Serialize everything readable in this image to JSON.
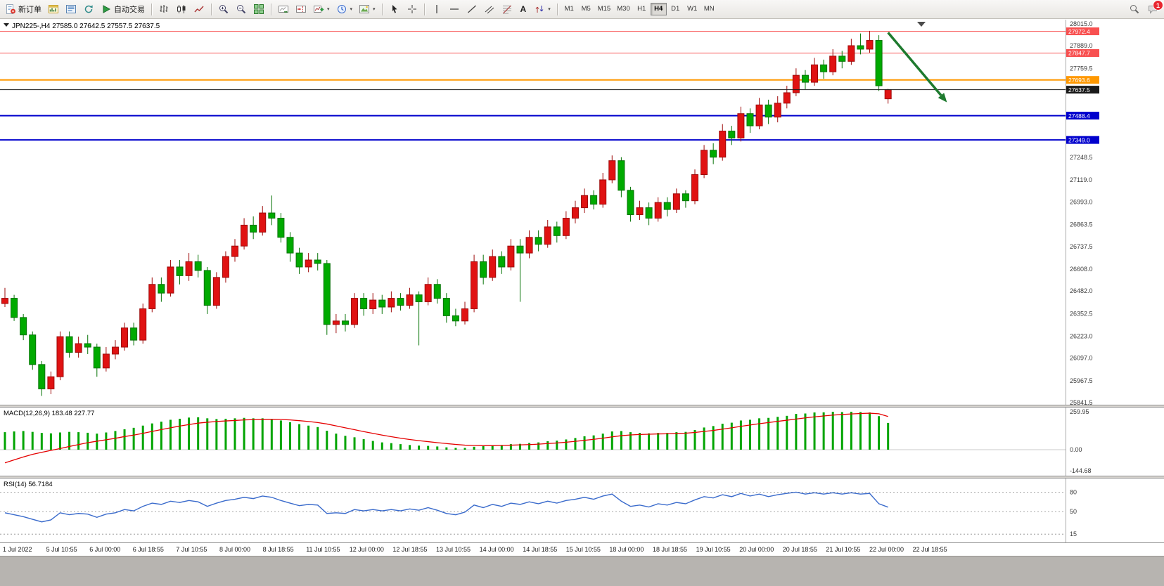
{
  "toolbar": {
    "new_order": "新订单",
    "auto_trading": "自动交易",
    "text_tool_label": "A",
    "timeframes": [
      "M1",
      "M5",
      "M15",
      "M30",
      "H1",
      "H4",
      "D1",
      "W1",
      "MN"
    ],
    "active_timeframe": "H4",
    "notification_badge": "1"
  },
  "chart": {
    "symbol_header": "JPN225-,H4",
    "price_axis_labels": [
      28015.0,
      27889.0,
      27759.5,
      27248.5,
      27119.0,
      26993.0,
      26863.5,
      26737.5,
      26608.0,
      26482.0,
      26352.5,
      26223.0,
      26097.0,
      25967.5,
      25841.5
    ],
    "levels": [
      {
        "price": 27972.4,
        "label": "27972.4",
        "color": "#f85050",
        "line_width": 1
      },
      {
        "price": 27847.7,
        "label": "27847.7",
        "color": "#f85050",
        "line_width": 1
      },
      {
        "price": 27693.6,
        "label": "27693.6",
        "color": "#ff9800",
        "line_width": 2
      },
      {
        "price": 27637.5,
        "label": "27637.5",
        "color": "#1a1a1a",
        "line_width": 1,
        "role": "current-price"
      },
      {
        "price": 27488.4,
        "label": "27488.4",
        "color": "#0000cd",
        "line_width": 2
      },
      {
        "price": 27349.0,
        "label": "27349.0",
        "color": "#0000cd",
        "line_width": 2
      }
    ],
    "time_axis": [
      "1 Jul 2022",
      "5 Jul 10:55",
      "6 Jul 00:00",
      "6 Jul 18:55",
      "7 Jul 10:55",
      "8 Jul 00:00",
      "8 Jul 18:55",
      "11 Jul 10:55",
      "12 Jul 00:00",
      "12 Jul 18:55",
      "13 Jul 10:55",
      "14 Jul 00:00",
      "14 Jul 18:55",
      "15 Jul 10:55",
      "18 Jul 00:00",
      "18 Jul 18:55",
      "19 Jul 10:55",
      "20 Jul 00:00",
      "20 Jul 18:55",
      "21 Jul 10:55",
      "22 Jul 00:00",
      "22 Jul 18:55"
    ]
  },
  "chart_data": {
    "type": "candlestick",
    "symbol": "JPN225-",
    "timeframe": "H4",
    "up_color": "#e01212",
    "down_color": "#00aa00",
    "ohlc_display": {
      "open": "27585.0",
      "high": "27642.5",
      "low": "27557.5",
      "close": "27637.5"
    },
    "price_range": [
      25841.5,
      28015.0
    ],
    "candles_ohlc": [
      [
        26410,
        26500,
        26390,
        26440
      ],
      [
        26440,
        26460,
        26310,
        26330
      ],
      [
        26330,
        26350,
        26200,
        26230
      ],
      [
        26230,
        26250,
        26030,
        26060
      ],
      [
        26060,
        26080,
        25880,
        25920
      ],
      [
        25920,
        26020,
        25890,
        25990
      ],
      [
        25990,
        26250,
        25970,
        26220
      ],
      [
        26220,
        26250,
        26100,
        26130
      ],
      [
        26130,
        26220,
        26100,
        26180
      ],
      [
        26180,
        26230,
        26120,
        26160
      ],
      [
        26160,
        26180,
        25990,
        26040
      ],
      [
        26040,
        26160,
        26020,
        26120
      ],
      [
        26120,
        26200,
        26090,
        26160
      ],
      [
        26160,
        26300,
        26140,
        26270
      ],
      [
        26270,
        26300,
        26170,
        26200
      ],
      [
        26200,
        26410,
        26180,
        26380
      ],
      [
        26380,
        26560,
        26360,
        26520
      ],
      [
        26520,
        26560,
        26420,
        26470
      ],
      [
        26470,
        26660,
        26450,
        26620
      ],
      [
        26620,
        26660,
        26520,
        26570
      ],
      [
        26570,
        26700,
        26540,
        26650
      ],
      [
        26650,
        26690,
        26560,
        26600
      ],
      [
        26600,
        26620,
        26350,
        26400
      ],
      [
        26400,
        26590,
        26380,
        26560
      ],
      [
        26560,
        26710,
        26530,
        26680
      ],
      [
        26680,
        26780,
        26650,
        26740
      ],
      [
        26740,
        26900,
        26720,
        26860
      ],
      [
        26860,
        26910,
        26780,
        26820
      ],
      [
        26820,
        26970,
        26800,
        26930
      ],
      [
        26930,
        27030,
        26860,
        26900
      ],
      [
        26900,
        26930,
        26760,
        26790
      ],
      [
        26790,
        26820,
        26650,
        26700
      ],
      [
        26700,
        26730,
        26580,
        26620
      ],
      [
        26620,
        26700,
        26590,
        26660
      ],
      [
        26660,
        26700,
        26600,
        26640
      ],
      [
        26640,
        26660,
        26230,
        26290
      ],
      [
        26290,
        26350,
        26240,
        26310
      ],
      [
        26310,
        26350,
        26250,
        26290
      ],
      [
        26290,
        26470,
        26270,
        26440
      ],
      [
        26440,
        26470,
        26340,
        26380
      ],
      [
        26380,
        26470,
        26350,
        26430
      ],
      [
        26430,
        26460,
        26350,
        26390
      ],
      [
        26390,
        26480,
        26360,
        26440
      ],
      [
        26440,
        26470,
        26370,
        26400
      ],
      [
        26400,
        26500,
        26380,
        26460
      ],
      [
        26460,
        26480,
        26170,
        26420
      ],
      [
        26420,
        26560,
        26400,
        26520
      ],
      [
        26520,
        26550,
        26410,
        26440
      ],
      [
        26440,
        26470,
        26300,
        26340
      ],
      [
        26340,
        26380,
        26280,
        26310
      ],
      [
        26310,
        26420,
        26290,
        26380
      ],
      [
        26380,
        26690,
        26360,
        26650
      ],
      [
        26650,
        26690,
        26520,
        26560
      ],
      [
        26560,
        26720,
        26540,
        26680
      ],
      [
        26680,
        26710,
        26580,
        26620
      ],
      [
        26620,
        26780,
        26600,
        26740
      ],
      [
        26740,
        26780,
        26420,
        26700
      ],
      [
        26700,
        26830,
        26670,
        26790
      ],
      [
        26790,
        26830,
        26710,
        26750
      ],
      [
        26750,
        26890,
        26730,
        26850
      ],
      [
        26850,
        26880,
        26760,
        26800
      ],
      [
        26800,
        26940,
        26780,
        26900
      ],
      [
        26900,
        27000,
        26870,
        26960
      ],
      [
        26960,
        27070,
        26930,
        27030
      ],
      [
        27030,
        27060,
        26950,
        26980
      ],
      [
        26980,
        27160,
        26960,
        27120
      ],
      [
        27120,
        27260,
        27100,
        27230
      ],
      [
        27230,
        27250,
        27020,
        27060
      ],
      [
        27060,
        27080,
        26880,
        26920
      ],
      [
        26920,
        27000,
        26890,
        26960
      ],
      [
        26960,
        26990,
        26860,
        26900
      ],
      [
        26900,
        27020,
        26880,
        26990
      ],
      [
        26990,
        27020,
        26910,
        26950
      ],
      [
        26950,
        27070,
        26930,
        27040
      ],
      [
        27040,
        27060,
        26960,
        27000
      ],
      [
        27000,
        27180,
        26980,
        27150
      ],
      [
        27150,
        27320,
        27130,
        27290
      ],
      [
        27290,
        27330,
        27210,
        27250
      ],
      [
        27250,
        27440,
        27230,
        27400
      ],
      [
        27400,
        27430,
        27320,
        27360
      ],
      [
        27360,
        27540,
        27340,
        27500
      ],
      [
        27500,
        27530,
        27390,
        27430
      ],
      [
        27430,
        27590,
        27410,
        27550
      ],
      [
        27550,
        27580,
        27440,
        27480
      ],
      [
        27480,
        27600,
        27450,
        27560
      ],
      [
        27560,
        27660,
        27530,
        27620
      ],
      [
        27620,
        27760,
        27600,
        27720
      ],
      [
        27720,
        27750,
        27640,
        27680
      ],
      [
        27680,
        27820,
        27660,
        27780
      ],
      [
        27780,
        27810,
        27700,
        27740
      ],
      [
        27740,
        27870,
        27720,
        27830
      ],
      [
        27830,
        27860,
        27760,
        27800
      ],
      [
        27800,
        27930,
        27780,
        27890
      ],
      [
        27890,
        27960,
        27840,
        27870
      ],
      [
        27870,
        27975,
        27850,
        27920
      ],
      [
        27920,
        27950,
        27630,
        27660
      ],
      [
        27585.0,
        27642.5,
        27557.5,
        27637.5
      ]
    ],
    "annotation_arrow": {
      "bar_from": 96,
      "price_from": 27965,
      "bar_to": 102.4,
      "price_to": 27565,
      "color": "#1e7a2e"
    },
    "macd": {
      "label": "MACD(12,26,9) 183.48 227.77",
      "params": "12,26,9",
      "value": 183.48,
      "signal_value": 227.77,
      "color_histogram": "#00a400",
      "color_signal": "#e50000",
      "axis": [
        {
          "v": 259.95,
          "t": "259.95"
        },
        {
          "v": 0,
          "t": "0.00"
        },
        {
          "v": -144.68,
          "t": "-144.68"
        }
      ],
      "histogram": [
        120,
        125,
        128,
        122,
        115,
        112,
        118,
        122,
        120,
        116,
        110,
        118,
        128,
        140,
        150,
        165,
        180,
        192,
        205,
        212,
        220,
        222,
        215,
        210,
        212,
        215,
        218,
        215,
        215,
        210,
        200,
        188,
        175,
        165,
        155,
        130,
        110,
        95,
        85,
        72,
        60,
        50,
        45,
        38,
        32,
        28,
        26,
        22,
        16,
        12,
        12,
        20,
        24,
        30,
        32,
        38,
        40,
        46,
        50,
        58,
        62,
        70,
        80,
        92,
        98,
        110,
        125,
        128,
        120,
        115,
        112,
        115,
        115,
        120,
        122,
        135,
        152,
        162,
        178,
        185,
        200,
        205,
        215,
        218,
        225,
        232,
        245,
        248,
        255,
        256,
        260,
        258,
        260,
        258,
        255,
        230,
        183.48
      ],
      "signal": [
        -90,
        -70,
        -50,
        -32,
        -18,
        -5,
        8,
        22,
        35,
        48,
        58,
        68,
        78,
        90,
        100,
        112,
        125,
        138,
        150,
        162,
        172,
        182,
        188,
        193,
        197,
        200,
        204,
        206,
        208,
        208,
        207,
        204,
        199,
        193,
        186,
        176,
        163,
        150,
        137,
        124,
        112,
        100,
        89,
        79,
        70,
        62,
        55,
        48,
        42,
        36,
        31,
        29,
        28,
        28,
        29,
        31,
        33,
        35,
        38,
        42,
        46,
        51,
        57,
        64,
        71,
        79,
        88,
        96,
        101,
        104,
        106,
        108,
        109,
        111,
        113,
        118,
        125,
        132,
        141,
        150,
        160,
        169,
        178,
        186,
        194,
        202,
        210,
        218,
        225,
        231,
        237,
        241,
        245,
        248,
        250,
        246,
        227.77
      ]
    },
    "rsi": {
      "label": "RSI(14) 56.7184",
      "period": 14,
      "value": 56.7184,
      "color": "#3a6bcc",
      "levels": [
        {
          "v": 80,
          "t": "80"
        },
        {
          "v": 50,
          "t": "50"
        },
        {
          "v": 15,
          "t": "15"
        }
      ],
      "values": [
        48,
        45,
        42,
        38,
        34,
        37,
        48,
        45,
        47,
        46,
        41,
        46,
        48,
        53,
        51,
        58,
        63,
        61,
        66,
        64,
        67,
        65,
        58,
        63,
        67,
        69,
        72,
        70,
        74,
        72,
        67,
        63,
        59,
        61,
        60,
        47,
        48,
        47,
        53,
        51,
        53,
        51,
        53,
        51,
        54,
        52,
        56,
        52,
        47,
        45,
        49,
        60,
        56,
        61,
        58,
        63,
        61,
        65,
        62,
        66,
        63,
        67,
        69,
        72,
        69,
        74,
        77,
        66,
        58,
        60,
        57,
        62,
        60,
        64,
        62,
        68,
        73,
        71,
        76,
        73,
        78,
        74,
        77,
        73,
        76,
        78,
        80,
        77,
        79,
        77,
        79,
        77,
        79,
        77,
        78,
        62,
        56.72
      ]
    }
  }
}
